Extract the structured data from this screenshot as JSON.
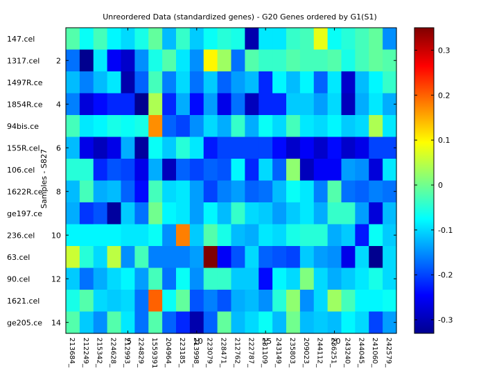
{
  "chart_data": {
    "type": "heatmap",
    "title": "Unreordered Data (standardized genes) - G20 Genes ordered by G1(S1)",
    "ylabel": "Samples - S827",
    "xlabel": "",
    "row_labels": [
      "147.cel",
      "1317.cel",
      "1497R.ce",
      "1854R.ce",
      "94bis.ce",
      "155R.cel",
      "106.cel",
      "1622R.ce",
      "ge197.ce",
      "236.cel",
      "63.cel",
      "90.cel",
      "1621.cel",
      "ge205.ce"
    ],
    "row_ticks": [
      "2",
      "4",
      "6",
      "8",
      "10",
      "12",
      "14"
    ],
    "row_tick_rows": [
      2,
      4,
      6,
      8,
      10,
      12,
      14
    ],
    "col_labels": [
      "213684_",
      "212249_",
      "215342_",
      "224628_",
      "212993_",
      "224829_",
      "1559391",
      "204964_",
      "223185_",
      "213998_",
      "223079_",
      "228471_",
      "212762_",
      "222787_",
      "231109_",
      "243149_",
      "235803_",
      "209023_",
      "244112_",
      "236251_",
      "243240_",
      "244045_",
      "241060_",
      "242579_"
    ],
    "col_ticks": [
      "5",
      "10",
      "15",
      "20"
    ],
    "col_tick_cols": [
      5,
      10,
      15,
      20
    ],
    "colorbar": {
      "min": -0.33,
      "max": 0.35,
      "ticks": [
        -0.3,
        -0.2,
        -0.1,
        0,
        0.1,
        0.2,
        0.3
      ],
      "tick_labels": [
        "-0.3",
        "-0.2",
        "-0.1",
        "0",
        "0.1",
        "0.2",
        "0.3"
      ],
      "colormap": "jet"
    },
    "values": [
      [
        -0.02,
        -0.07,
        -0.03,
        -0.08,
        -0.1,
        -0.06,
        -0.01,
        -0.12,
        -0.04,
        -0.11,
        -0.07,
        -0.05,
        -0.06,
        -0.3,
        -0.09,
        -0.09,
        -0.04,
        -0.03,
        0.08,
        -0.07,
        -0.05,
        -0.03,
        -0.01,
        -0.15
      ],
      [
        -0.17,
        -0.32,
        -0.09,
        -0.25,
        -0.28,
        -0.15,
        -0.06,
        -0.02,
        -0.09,
        -0.15,
        0.1,
        0.03,
        -0.17,
        -0.02,
        -0.04,
        -0.04,
        -0.02,
        -0.03,
        -0.03,
        -0.02,
        -0.06,
        -0.03,
        -0.01,
        -0.02
      ],
      [
        -0.12,
        -0.16,
        -0.12,
        -0.09,
        -0.3,
        -0.18,
        -0.03,
        -0.16,
        -0.1,
        -0.17,
        -0.11,
        -0.18,
        -0.14,
        -0.12,
        -0.22,
        -0.08,
        -0.12,
        -0.08,
        -0.18,
        -0.09,
        -0.28,
        -0.12,
        -0.08,
        -0.04
      ],
      [
        -0.16,
        -0.27,
        -0.24,
        -0.22,
        -0.22,
        -0.32,
        0.04,
        -0.22,
        -0.13,
        -0.24,
        -0.14,
        -0.26,
        -0.17,
        -0.29,
        -0.22,
        -0.22,
        -0.11,
        -0.11,
        -0.14,
        -0.1,
        -0.29,
        -0.13,
        -0.09,
        -0.13
      ],
      [
        -0.03,
        -0.09,
        -0.08,
        -0.06,
        -0.07,
        -0.06,
        0.17,
        -0.18,
        -0.2,
        -0.15,
        -0.1,
        -0.13,
        -0.04,
        -0.13,
        -0.07,
        -0.1,
        -0.03,
        -0.09,
        -0.1,
        -0.08,
        -0.11,
        -0.1,
        0.04,
        -0.09
      ],
      [
        -0.12,
        -0.26,
        -0.29,
        -0.26,
        -0.13,
        -0.31,
        -0.07,
        -0.11,
        -0.05,
        -0.09,
        -0.23,
        -0.2,
        -0.2,
        -0.2,
        -0.2,
        -0.24,
        -0.28,
        -0.25,
        -0.28,
        -0.24,
        -0.28,
        -0.26,
        -0.2,
        -0.2
      ],
      [
        -0.05,
        -0.05,
        -0.22,
        -0.19,
        -0.2,
        -0.26,
        -0.13,
        -0.29,
        -0.18,
        -0.2,
        -0.18,
        -0.19,
        -0.08,
        -0.22,
        -0.1,
        -0.18,
        0.02,
        -0.29,
        -0.25,
        -0.25,
        -0.14,
        -0.15,
        -0.27,
        -0.09
      ],
      [
        -0.12,
        -0.03,
        -0.13,
        -0.12,
        -0.18,
        -0.24,
        -0.03,
        -0.1,
        -0.09,
        -0.14,
        -0.2,
        -0.16,
        -0.14,
        -0.18,
        -0.17,
        -0.12,
        -0.07,
        -0.09,
        -0.16,
        -0.02,
        -0.17,
        -0.18,
        -0.16,
        -0.17
      ],
      [
        -0.13,
        -0.21,
        -0.19,
        -0.31,
        -0.11,
        -0.17,
        0.0,
        -0.08,
        -0.09,
        -0.14,
        -0.08,
        -0.12,
        -0.04,
        -0.1,
        -0.11,
        -0.14,
        -0.11,
        -0.09,
        -0.13,
        -0.04,
        -0.04,
        -0.14,
        -0.27,
        -0.12
      ],
      [
        -0.08,
        -0.08,
        -0.08,
        -0.08,
        -0.09,
        -0.09,
        -0.07,
        -0.15,
        0.18,
        -0.11,
        -0.02,
        -0.06,
        -0.12,
        -0.13,
        -0.09,
        -0.1,
        -0.06,
        -0.05,
        -0.05,
        -0.13,
        -0.11,
        -0.23,
        -0.07,
        -0.11
      ],
      [
        0.06,
        -0.05,
        -0.1,
        0.05,
        -0.15,
        -0.03,
        -0.16,
        -0.16,
        -0.16,
        -0.14,
        0.35,
        -0.25,
        -0.19,
        -0.1,
        -0.18,
        -0.19,
        -0.2,
        -0.11,
        -0.14,
        -0.15,
        -0.26,
        -0.1,
        -0.32,
        -0.1
      ],
      [
        -0.11,
        -0.17,
        -0.13,
        -0.1,
        -0.08,
        -0.14,
        -0.03,
        -0.17,
        -0.07,
        -0.15,
        -0.04,
        -0.04,
        -0.11,
        -0.11,
        -0.24,
        -0.08,
        -0.1,
        0.01,
        -0.1,
        -0.13,
        -0.11,
        -0.09,
        -0.06,
        -0.1
      ],
      [
        -0.06,
        -0.02,
        -0.1,
        -0.11,
        -0.1,
        -0.17,
        0.2,
        -0.07,
        -0.01,
        -0.19,
        -0.16,
        -0.19,
        -0.13,
        -0.12,
        -0.15,
        -0.05,
        0.02,
        -0.15,
        -0.1,
        0.03,
        -0.03,
        -0.08,
        -0.08,
        -0.07
      ],
      [
        -0.02,
        -0.11,
        -0.15,
        -0.02,
        -0.09,
        -0.17,
        -0.02,
        -0.18,
        -0.22,
        -0.3,
        -0.18,
        -0.01,
        -0.12,
        -0.1,
        -0.07,
        -0.12,
        0.0,
        -0.12,
        -0.11,
        -0.12,
        -0.08,
        -0.1,
        -0.2,
        -0.14
      ]
    ]
  }
}
